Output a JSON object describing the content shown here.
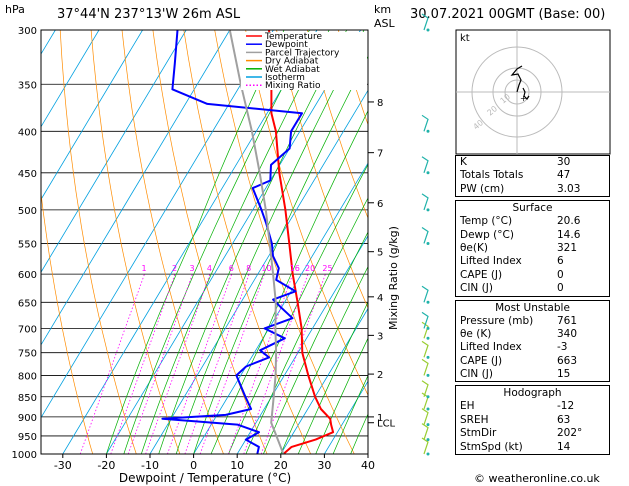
{
  "header": {
    "hpa_label": "hPa",
    "location": "37°44'N  237°13'W  26m  ASL",
    "km_label": "km",
    "asl_label": "ASL",
    "datetime": "30.07.2021  00GMT  (Base: 00)"
  },
  "chart_data": {
    "type": "line",
    "xlabel": "Dewpoint / Temperature (°C)",
    "ylabel_right": "Mixing Ratio (g/kg)",
    "x_ticks": [
      -30,
      -20,
      -10,
      0,
      10,
      20,
      30,
      40
    ],
    "pressure_levels": [
      300,
      350,
      400,
      450,
      500,
      550,
      600,
      650,
      700,
      750,
      800,
      850,
      900,
      950,
      1000
    ],
    "km_ticks": [
      {
        "label": "8",
        "p": 368
      },
      {
        "label": "7",
        "p": 425
      },
      {
        "label": "6",
        "p": 490
      },
      {
        "label": "5",
        "p": 563
      },
      {
        "label": "4",
        "p": 640
      },
      {
        "label": "3",
        "p": 714
      },
      {
        "label": "2",
        "p": 797
      },
      {
        "label": "1",
        "p": 900
      },
      {
        "label": "LCL",
        "p": 915
      }
    ],
    "mixing_ratio_labels": [
      "1",
      "2",
      "3",
      "4",
      "6",
      "8",
      "10",
      "16",
      "20",
      "25"
    ],
    "legend": [
      "Temperature",
      "Dewpoint",
      "Parcel Trajectory",
      "Dry Adiabat",
      "Wet Adiabat",
      "Isotherm",
      "Mixing Ratio"
    ],
    "series": [
      {
        "name": "Temperature",
        "points": [
          [
            1000,
            20.6
          ],
          [
            980,
            21.5
          ],
          [
            960,
            26
          ],
          [
            940,
            29
          ],
          [
            920,
            27.5
          ],
          [
            905,
            26.5
          ],
          [
            880,
            23
          ],
          [
            850,
            20
          ],
          [
            800,
            15.5
          ],
          [
            750,
            11
          ],
          [
            700,
            7.5
          ],
          [
            650,
            3
          ],
          [
            600,
            -2
          ],
          [
            550,
            -7
          ],
          [
            500,
            -12.5
          ],
          [
            450,
            -19
          ],
          [
            400,
            -25.5
          ],
          [
            380,
            -29
          ],
          [
            350,
            -33
          ],
          [
            320,
            -37.5
          ],
          [
            300,
            -41
          ]
        ]
      },
      {
        "name": "Dewpoint",
        "points": [
          [
            1000,
            14.6
          ],
          [
            980,
            14
          ],
          [
            960,
            10
          ],
          [
            940,
            12
          ],
          [
            920,
            6
          ],
          [
            905,
            -12
          ],
          [
            895,
            2
          ],
          [
            880,
            7
          ],
          [
            850,
            4
          ],
          [
            800,
            -1
          ],
          [
            780,
            0
          ],
          [
            760,
            4
          ],
          [
            745,
            1
          ],
          [
            720,
            5
          ],
          [
            700,
            -1
          ],
          [
            680,
            4
          ],
          [
            660,
            0
          ],
          [
            645,
            -3
          ],
          [
            630,
            1
          ],
          [
            610,
            -5
          ],
          [
            590,
            -6
          ],
          [
            570,
            -9
          ],
          [
            550,
            -11
          ],
          [
            520,
            -15
          ],
          [
            500,
            -18
          ],
          [
            470,
            -23
          ],
          [
            460,
            -20
          ],
          [
            440,
            -22
          ],
          [
            420,
            -20
          ],
          [
            400,
            -22
          ],
          [
            380,
            -22
          ],
          [
            370,
            -45
          ],
          [
            355,
            -55
          ],
          [
            330,
            -58
          ],
          [
            300,
            -62
          ]
        ]
      },
      {
        "name": "Parcel Trajectory",
        "points": [
          [
            1000,
            20.6
          ],
          [
            950,
            16.5
          ],
          [
            915,
            13.5
          ],
          [
            850,
            10.5
          ],
          [
            800,
            8
          ],
          [
            750,
            5
          ],
          [
            700,
            1.5
          ],
          [
            650,
            -2
          ],
          [
            600,
            -6.5
          ],
          [
            550,
            -11.5
          ],
          [
            500,
            -17
          ],
          [
            450,
            -23.5
          ],
          [
            400,
            -31
          ],
          [
            350,
            -40
          ],
          [
            300,
            -50
          ]
        ]
      }
    ]
  },
  "hodograph": {
    "label": "kt",
    "rings": [
      "10",
      "20",
      "40"
    ]
  },
  "table": {
    "top": [
      {
        "k": "K",
        "v": "30"
      },
      {
        "k": "Totals Totals",
        "v": "47"
      },
      {
        "k": "PW (cm)",
        "v": "3.03"
      }
    ],
    "surface_title": "Surface",
    "surface": [
      {
        "k": "Temp (°C)",
        "v": "20.6"
      },
      {
        "k": "Dewp (°C)",
        "v": "14.6"
      },
      {
        "k": "θe(K)",
        "v": "321"
      },
      {
        "k": "Lifted Index",
        "v": "6"
      },
      {
        "k": "CAPE (J)",
        "v": "0"
      },
      {
        "k": "CIN (J)",
        "v": "0"
      }
    ],
    "mu_title": "Most Unstable",
    "most_unstable": [
      {
        "k": "Pressure (mb)",
        "v": "761"
      },
      {
        "k": "θe (K)",
        "v": "340"
      },
      {
        "k": "Lifted Index",
        "v": "-3"
      },
      {
        "k": "CAPE (J)",
        "v": "663"
      },
      {
        "k": "CIN (J)",
        "v": "15"
      }
    ],
    "hodo_title": "Hodograph",
    "hodograph": [
      {
        "k": "EH",
        "v": "-12"
      },
      {
        "k": "SREH",
        "v": "63"
      },
      {
        "k": "StmDir",
        "v": "202°"
      },
      {
        "k": "StmSpd (kt)",
        "v": "14"
      }
    ]
  },
  "copyright": "© weatheronline.co.uk",
  "colors": {
    "temperature": "#ff0000",
    "dewpoint": "#0000ff",
    "parcel": "#a0a0a0",
    "dry_adiabat": "#ff8c00",
    "wet_adiabat": "#00b000",
    "isotherm": "#00a0e0",
    "mixing_ratio": "#ff00ff"
  }
}
